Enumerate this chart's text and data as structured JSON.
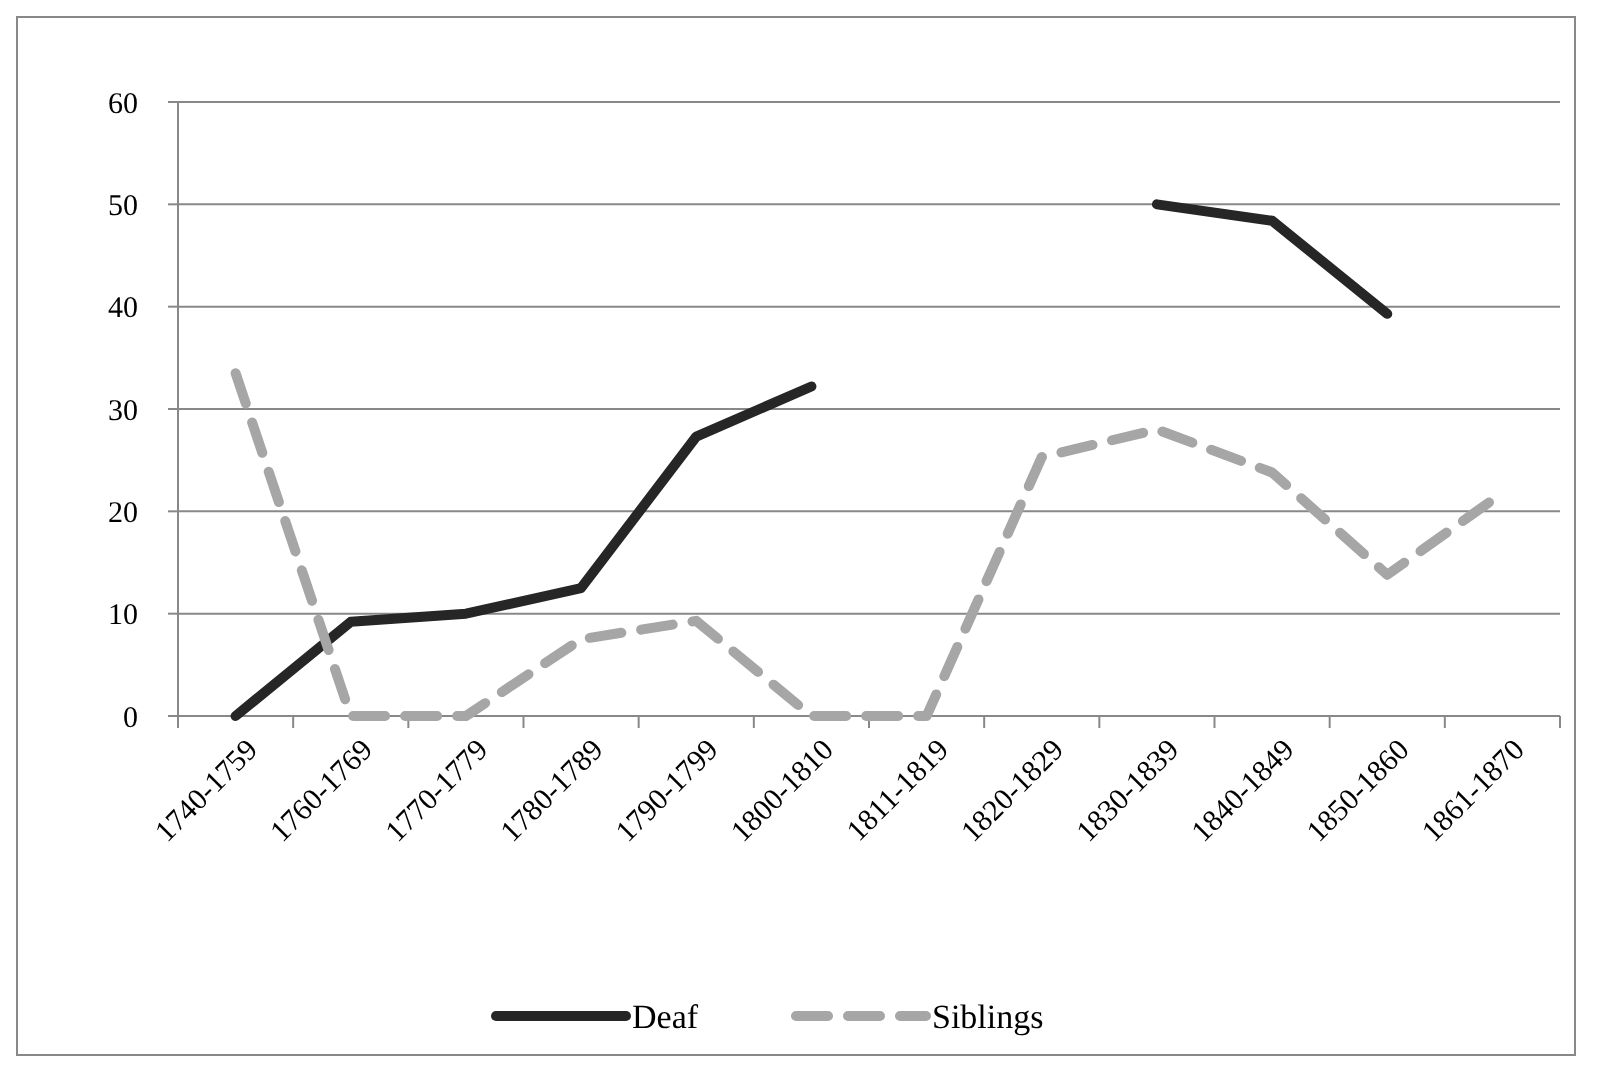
{
  "chart_data": {
    "type": "line",
    "categories": [
      "1740-1759",
      "1760-1769",
      "1770-1779",
      "1780-1789",
      "1790-1799",
      "1800-1810",
      "1811-1819",
      "1820-1829",
      "1830-1839",
      "1840-1849",
      "1850-1860",
      "1861-1870"
    ],
    "series": [
      {
        "name": "Deaf",
        "color": "#262626",
        "line_style": "solid",
        "values": [
          0,
          9.2,
          10,
          12.5,
          27.3,
          32.2,
          null,
          null,
          50,
          48.4,
          39.3,
          null
        ]
      },
      {
        "name": "Siblings",
        "color": "#a6a6a6",
        "line_style": "dashed",
        "values": [
          33.5,
          0,
          0,
          7.5,
          9.3,
          0,
          0,
          25.3,
          28,
          23.8,
          13.8,
          21.8
        ]
      }
    ],
    "ylim": [
      0,
      60
    ],
    "yticks": [
      0,
      10,
      20,
      30,
      40,
      50,
      60
    ],
    "grid": "y",
    "legend": "bottom"
  }
}
